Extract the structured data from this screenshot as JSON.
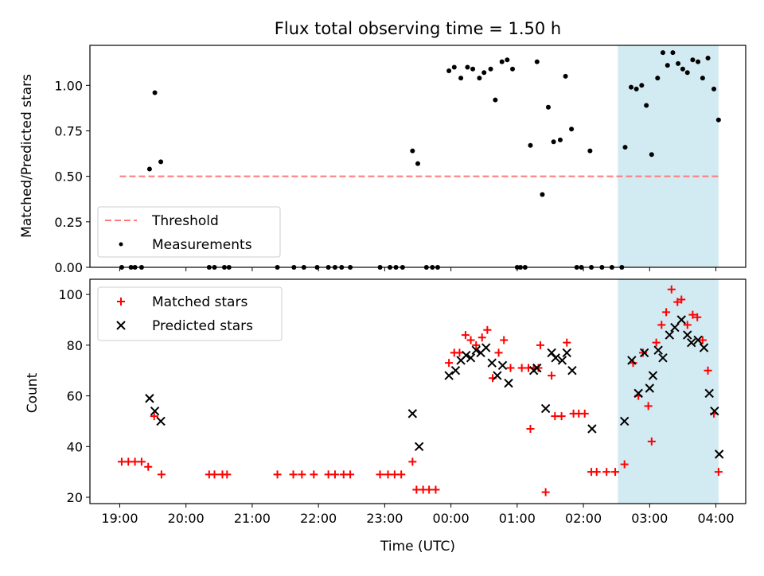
{
  "chart_data": {
    "title": "Flux total observing time = 1.50 h",
    "xlabel": "Time (UTC)",
    "x_ticks": [
      "19:00",
      "20:00",
      "21:00",
      "22:00",
      "23:00",
      "00:00",
      "01:00",
      "02:00",
      "03:00",
      "04:00"
    ],
    "highlight_span": {
      "start_hours": 7.52,
      "end_hours": 9.04,
      "color": "#add8e6"
    },
    "top": {
      "type": "scatter",
      "ylabel": "Matched/Predicted stars",
      "ylim": [
        0,
        1.22
      ],
      "y_ticks": [
        "0.00",
        "0.25",
        "0.50",
        "0.75",
        "1.00"
      ],
      "threshold": {
        "label": "Threshold",
        "value": 0.5,
        "x_range": [
          0,
          9.04
        ],
        "color": "#ff7b7b"
      },
      "measurements": {
        "label": "Measurements",
        "color": "#000000",
        "points": [
          [
            0.03,
            0
          ],
          [
            0.17,
            0
          ],
          [
            0.23,
            0
          ],
          [
            0.33,
            0
          ],
          [
            0.45,
            0.54
          ],
          [
            0.53,
            0.96
          ],
          [
            0.62,
            0.58
          ],
          [
            1.35,
            0
          ],
          [
            1.43,
            0
          ],
          [
            1.58,
            0
          ],
          [
            1.65,
            0
          ],
          [
            2.38,
            0
          ],
          [
            2.63,
            0
          ],
          [
            2.78,
            0
          ],
          [
            2.98,
            0
          ],
          [
            3.15,
            0
          ],
          [
            3.25,
            0
          ],
          [
            3.35,
            0
          ],
          [
            3.48,
            0
          ],
          [
            3.93,
            0
          ],
          [
            4.08,
            0
          ],
          [
            4.17,
            0
          ],
          [
            4.27,
            0
          ],
          [
            4.42,
            0.64
          ],
          [
            4.5,
            0.57
          ],
          [
            4.63,
            0
          ],
          [
            4.72,
            0
          ],
          [
            4.8,
            0
          ],
          [
            4.97,
            1.08
          ],
          [
            5.05,
            1.1
          ],
          [
            5.15,
            1.04
          ],
          [
            5.25,
            1.1
          ],
          [
            5.33,
            1.09
          ],
          [
            5.43,
            1.04
          ],
          [
            5.5,
            1.07
          ],
          [
            5.6,
            1.09
          ],
          [
            5.67,
            0.92
          ],
          [
            5.77,
            1.13
          ],
          [
            5.85,
            1.14
          ],
          [
            5.93,
            1.09
          ],
          [
            6.0,
            0
          ],
          [
            6.05,
            0
          ],
          [
            6.12,
            0
          ],
          [
            6.2,
            0.67
          ],
          [
            6.3,
            1.13
          ],
          [
            6.38,
            0.4
          ],
          [
            6.47,
            0.88
          ],
          [
            6.55,
            0.69
          ],
          [
            6.65,
            0.7
          ],
          [
            6.73,
            1.05
          ],
          [
            6.82,
            0.76
          ],
          [
            6.9,
            0
          ],
          [
            6.97,
            0
          ],
          [
            7.1,
            0.64
          ],
          [
            7.12,
            0
          ],
          [
            7.28,
            0
          ],
          [
            7.43,
            0
          ],
          [
            7.58,
            0
          ],
          [
            7.63,
            0.66
          ],
          [
            7.72,
            0.99
          ],
          [
            7.8,
            0.98
          ],
          [
            7.88,
            1.0
          ],
          [
            7.95,
            0.89
          ],
          [
            8.03,
            0.62
          ],
          [
            8.12,
            1.04
          ],
          [
            8.2,
            1.18
          ],
          [
            8.27,
            1.11
          ],
          [
            8.35,
            1.18
          ],
          [
            8.43,
            1.12
          ],
          [
            8.5,
            1.09
          ],
          [
            8.57,
            1.07
          ],
          [
            8.65,
            1.14
          ],
          [
            8.73,
            1.13
          ],
          [
            8.8,
            1.04
          ],
          [
            8.88,
            1.15
          ],
          [
            8.97,
            0.98
          ],
          [
            9.04,
            0.81
          ]
        ]
      },
      "legend": {
        "placement": "lower-left"
      }
    },
    "bottom": {
      "type": "scatter",
      "ylabel": "Count",
      "ylim": [
        17.5,
        106
      ],
      "y_ticks": [
        "20",
        "40",
        "60",
        "80",
        "100"
      ],
      "series": [
        {
          "name": "Matched stars",
          "marker": "plus",
          "color": "#ff0000",
          "points": [
            [
              0.03,
              34
            ],
            [
              0.13,
              34
            ],
            [
              0.23,
              34
            ],
            [
              0.33,
              34
            ],
            [
              0.43,
              32
            ],
            [
              0.52,
              52
            ],
            [
              0.63,
              29
            ],
            [
              1.35,
              29
            ],
            [
              1.43,
              29
            ],
            [
              1.55,
              29
            ],
            [
              1.62,
              29
            ],
            [
              2.38,
              29
            ],
            [
              2.62,
              29
            ],
            [
              2.75,
              29
            ],
            [
              2.93,
              29
            ],
            [
              3.15,
              29
            ],
            [
              3.25,
              29
            ],
            [
              3.38,
              29
            ],
            [
              3.48,
              29
            ],
            [
              3.93,
              29
            ],
            [
              4.05,
              29
            ],
            [
              4.15,
              29
            ],
            [
              4.25,
              29
            ],
            [
              4.42,
              34
            ],
            [
              4.48,
              23
            ],
            [
              4.58,
              23
            ],
            [
              4.67,
              23
            ],
            [
              4.77,
              23
            ],
            [
              4.97,
              73
            ],
            [
              5.05,
              77
            ],
            [
              5.13,
              77
            ],
            [
              5.22,
              84
            ],
            [
              5.3,
              82
            ],
            [
              5.38,
              80
            ],
            [
              5.47,
              83
            ],
            [
              5.55,
              86
            ],
            [
              5.63,
              67
            ],
            [
              5.72,
              77
            ],
            [
              5.8,
              82
            ],
            [
              5.9,
              71
            ],
            [
              6.07,
              71
            ],
            [
              6.17,
              71
            ],
            [
              6.25,
              71
            ],
            [
              6.32,
              71
            ],
            [
              6.2,
              47
            ],
            [
              6.35,
              80
            ],
            [
              6.43,
              22
            ],
            [
              6.52,
              68
            ],
            [
              6.57,
              52
            ],
            [
              6.67,
              52
            ],
            [
              6.75,
              81
            ],
            [
              6.85,
              53
            ],
            [
              6.93,
              53
            ],
            [
              7.02,
              53
            ],
            [
              7.12,
              30
            ],
            [
              7.2,
              30
            ],
            [
              7.35,
              30
            ],
            [
              7.48,
              30
            ],
            [
              7.62,
              33
            ],
            [
              7.75,
              73
            ],
            [
              7.83,
              60
            ],
            [
              7.9,
              77
            ],
            [
              7.98,
              56
            ],
            [
              8.03,
              42
            ],
            [
              8.1,
              81
            ],
            [
              8.18,
              88
            ],
            [
              8.25,
              93
            ],
            [
              8.33,
              102
            ],
            [
              8.42,
              97
            ],
            [
              8.48,
              98
            ],
            [
              8.57,
              88
            ],
            [
              8.65,
              92
            ],
            [
              8.72,
              91
            ],
            [
              8.8,
              82
            ],
            [
              8.88,
              70
            ],
            [
              8.97,
              53
            ],
            [
              9.04,
              30
            ]
          ]
        },
        {
          "name": "Predicted stars",
          "marker": "x",
          "color": "#000000",
          "points": [
            [
              0.45,
              59
            ],
            [
              0.53,
              54
            ],
            [
              0.62,
              50
            ],
            [
              4.42,
              53
            ],
            [
              4.52,
              40
            ],
            [
              4.97,
              68
            ],
            [
              5.07,
              70
            ],
            [
              5.15,
              74
            ],
            [
              5.23,
              76
            ],
            [
              5.3,
              75
            ],
            [
              5.38,
              78
            ],
            [
              5.45,
              77
            ],
            [
              5.53,
              79
            ],
            [
              5.62,
              73
            ],
            [
              5.7,
              68
            ],
            [
              5.78,
              72
            ],
            [
              5.87,
              65
            ],
            [
              6.25,
              70
            ],
            [
              6.3,
              71
            ],
            [
              6.43,
              55
            ],
            [
              6.52,
              77
            ],
            [
              6.58,
              75
            ],
            [
              6.68,
              74
            ],
            [
              6.75,
              77
            ],
            [
              6.83,
              70
            ],
            [
              7.13,
              47
            ],
            [
              7.62,
              50
            ],
            [
              7.73,
              74
            ],
            [
              7.83,
              61
            ],
            [
              7.92,
              77
            ],
            [
              8.0,
              63
            ],
            [
              8.05,
              68
            ],
            [
              8.13,
              78
            ],
            [
              8.2,
              75
            ],
            [
              8.3,
              84
            ],
            [
              8.38,
              87
            ],
            [
              8.48,
              90
            ],
            [
              8.57,
              84
            ],
            [
              8.63,
              81
            ],
            [
              8.73,
              82
            ],
            [
              8.82,
              79
            ],
            [
              8.9,
              61
            ],
            [
              8.98,
              54
            ],
            [
              9.05,
              37
            ]
          ]
        }
      ],
      "legend": {
        "placement": "upper-left"
      }
    }
  }
}
